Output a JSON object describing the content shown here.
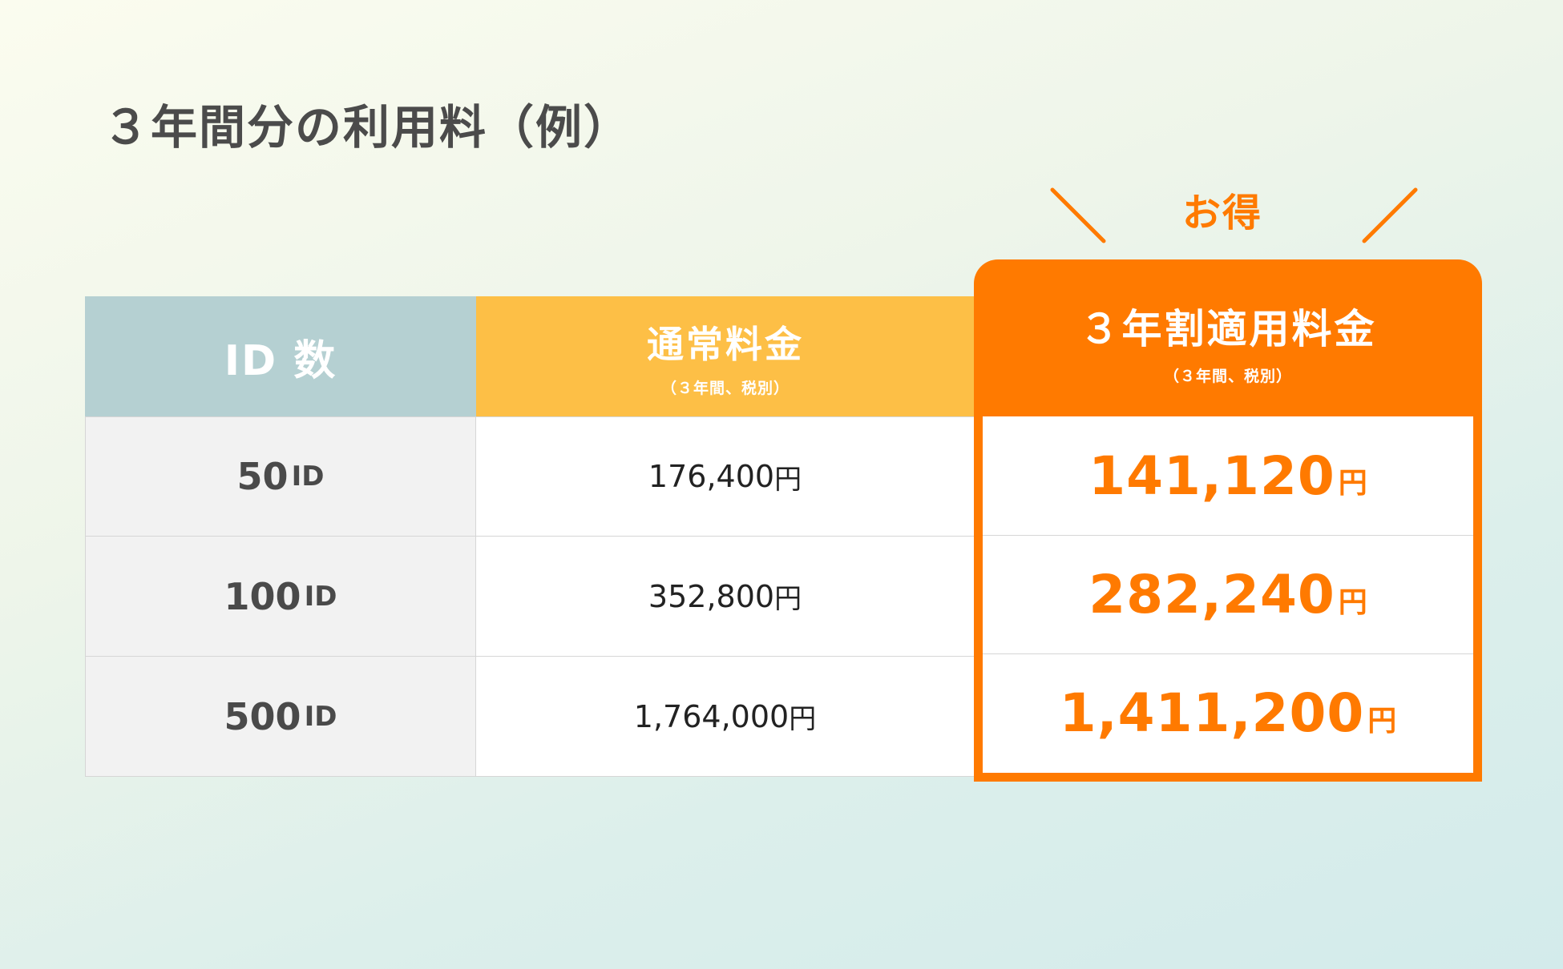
{
  "title": "３年間分の利用料（例）",
  "badge": "お得",
  "colors": {
    "accent": "#ff7a00",
    "normal_header": "#fdbf46",
    "id_header": "#b5d0d2"
  },
  "table": {
    "headers": {
      "id": "ID 数",
      "normal": {
        "label": "通常料金",
        "sub": "（３年間、税別）"
      },
      "discount": {
        "label": "３年割適用料金",
        "sub": "（３年間、税別）"
      }
    },
    "rows": [
      {
        "id_value": "50",
        "id_unit": "ID",
        "normal_price": "176,400",
        "normal_unit": "円",
        "discount_price": "141,120",
        "discount_unit": "円"
      },
      {
        "id_value": "100",
        "id_unit": "ID",
        "normal_price": "352,800",
        "normal_unit": "円",
        "discount_price": "282,240",
        "discount_unit": "円"
      },
      {
        "id_value": "500",
        "id_unit": "ID",
        "normal_price": "1,764,000",
        "normal_unit": "円",
        "discount_price": "1,411,200",
        "discount_unit": "円"
      }
    ]
  }
}
